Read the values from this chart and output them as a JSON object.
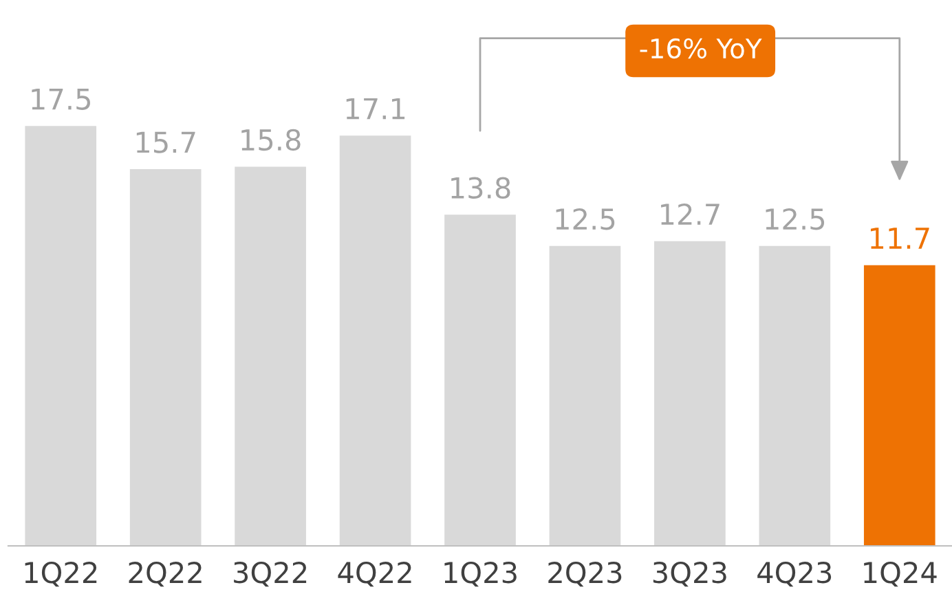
{
  "chart_data": {
    "type": "bar",
    "categories": [
      "1Q22",
      "2Q22",
      "3Q22",
      "4Q22",
      "1Q23",
      "2Q23",
      "3Q23",
      "4Q23",
      "1Q24"
    ],
    "values": [
      17.5,
      15.7,
      15.8,
      17.1,
      13.8,
      12.5,
      12.7,
      12.5,
      11.7
    ],
    "colors": [
      "#d9d9d9",
      "#d9d9d9",
      "#d9d9d9",
      "#d9d9d9",
      "#d9d9d9",
      "#d9d9d9",
      "#d9d9d9",
      "#d9d9d9",
      "#ee7203"
    ],
    "data_labels": true,
    "grid": false,
    "annotations": [
      "-16% YoY"
    ]
  }
}
